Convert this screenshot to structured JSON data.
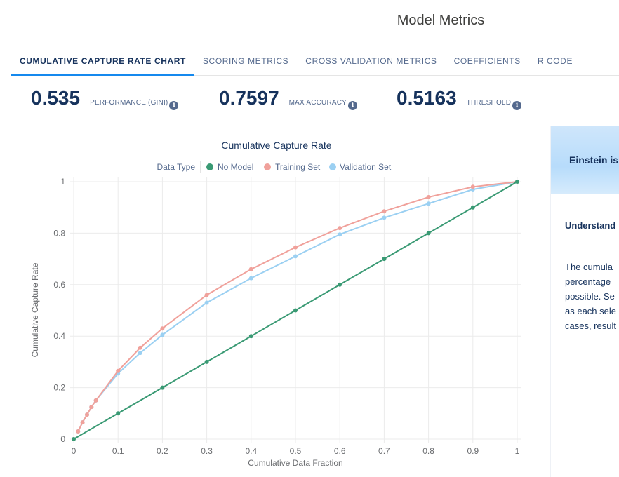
{
  "header": {
    "title": "Model Metrics"
  },
  "tabs": [
    {
      "label": "CUMULATIVE CAPTURE RATE CHART",
      "active": true
    },
    {
      "label": "SCORING METRICS",
      "active": false
    },
    {
      "label": "CROSS VALIDATION METRICS",
      "active": false
    },
    {
      "label": "COEFFICIENTS",
      "active": false
    },
    {
      "label": "R CODE",
      "active": false
    }
  ],
  "metrics": [
    {
      "value": "0.535",
      "label": "PERFORMANCE (GINI)",
      "icon": "info-icon"
    },
    {
      "value": "0.7597",
      "label": "MAX ACCURACY",
      "icon": "info-icon"
    },
    {
      "value": "0.5163",
      "label": "THRESHOLD",
      "icon": "info-icon"
    }
  ],
  "side_panel": {
    "banner_text": "Einstein is",
    "heading": "Understand",
    "paragraph": [
      "The cumula",
      "percentage",
      "possible. Se",
      "as each sele",
      "cases, result"
    ]
  },
  "colors": {
    "no_model": "#3a9a74",
    "training": "#f0a19b",
    "validation": "#9bd0f2",
    "accent": "#1589ee",
    "title": "#16325c"
  },
  "chart_data": {
    "type": "line",
    "title": "Cumulative Capture Rate",
    "legend_title": "Data Type",
    "legend_position": "top",
    "xlabel": "Cumulative Data Fraction",
    "ylabel": "Cumulative Capture Rate",
    "xlim": [
      0,
      1
    ],
    "ylim": [
      0,
      1
    ],
    "x_ticks": [
      "0",
      "0.1",
      "0.2",
      "0.3",
      "0.4",
      "0.5",
      "0.6",
      "0.7",
      "0.8",
      "0.9",
      "1"
    ],
    "y_ticks": [
      "0",
      "0.2",
      "0.4",
      "0.6",
      "0.8",
      "1"
    ],
    "grid": true,
    "series": [
      {
        "name": "No Model",
        "color": "#3a9a74",
        "x": [
          0,
          0.1,
          0.2,
          0.3,
          0.4,
          0.5,
          0.6,
          0.7,
          0.8,
          0.9,
          1
        ],
        "y": [
          0,
          0.1,
          0.2,
          0.3,
          0.4,
          0.5,
          0.6,
          0.7,
          0.8,
          0.9,
          1
        ]
      },
      {
        "name": "Training Set",
        "color": "#f0a19b",
        "x": [
          0.01,
          0.02,
          0.03,
          0.04,
          0.05,
          0.1,
          0.15,
          0.2,
          0.3,
          0.4,
          0.5,
          0.6,
          0.7,
          0.8,
          0.9,
          1
        ],
        "y": [
          0.03,
          0.065,
          0.095,
          0.125,
          0.15,
          0.265,
          0.355,
          0.43,
          0.56,
          0.66,
          0.745,
          0.82,
          0.885,
          0.94,
          0.98,
          1
        ]
      },
      {
        "name": "Validation Set",
        "color": "#9bd0f2",
        "x": [
          0.01,
          0.02,
          0.03,
          0.04,
          0.05,
          0.1,
          0.15,
          0.2,
          0.3,
          0.4,
          0.5,
          0.6,
          0.7,
          0.8,
          0.9,
          1
        ],
        "y": [
          0.03,
          0.065,
          0.095,
          0.125,
          0.15,
          0.255,
          0.335,
          0.405,
          0.53,
          0.625,
          0.71,
          0.795,
          0.86,
          0.915,
          0.97,
          1
        ]
      }
    ]
  }
}
